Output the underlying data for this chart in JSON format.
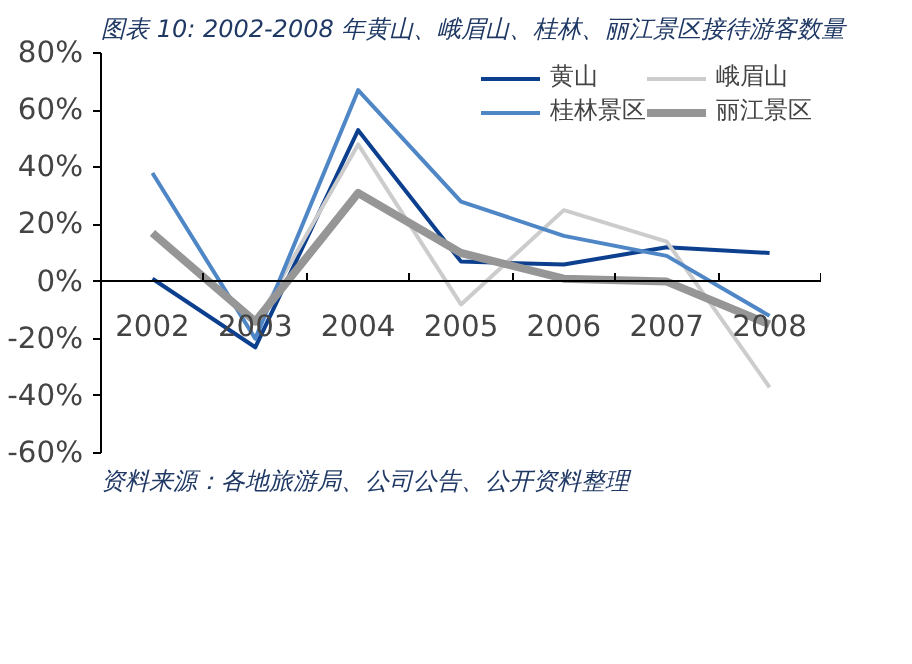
{
  "chart_data": {
    "type": "line",
    "title": "图表 10: 2002-2008 年黄山、峨眉山、桂林、丽江景区接待游客数量",
    "categories": [
      "2002",
      "2003",
      "2004",
      "2005",
      "2006",
      "2007",
      "2008"
    ],
    "series": [
      {
        "name": "黄山",
        "color": "#0d3f8f",
        "values": [
          1,
          -23,
          53,
          7,
          6,
          12,
          10
        ]
      },
      {
        "name": "峨眉山",
        "color": "#cccccc",
        "values": [
          null,
          -15,
          48,
          -8,
          25,
          14,
          -37
        ]
      },
      {
        "name": "桂林景区",
        "color": "#4f86c6",
        "values": [
          38,
          -20,
          67,
          28,
          16,
          9,
          -12
        ]
      },
      {
        "name": "丽江景区",
        "color": "#969696",
        "values": [
          17,
          -14,
          31,
          10,
          1,
          0,
          -15
        ]
      }
    ],
    "ylim": [
      -60,
      80
    ],
    "yticks": [
      {
        "value": -60,
        "label": "-60%"
      },
      {
        "value": -40,
        "label": "-40%"
      },
      {
        "value": -20,
        "label": "-20%"
      },
      {
        "value": 0,
        "label": "0%"
      },
      {
        "value": 20,
        "label": "20%"
      },
      {
        "value": 40,
        "label": "40%"
      },
      {
        "value": 60,
        "label": "60%"
      },
      {
        "value": 80,
        "label": "80%"
      }
    ],
    "legend": "top right",
    "grid": false,
    "marker": "none",
    "line_style": "solid",
    "annotations": [
      "资料来源：各地旅游局、公司公告、公开资料整理"
    ]
  }
}
